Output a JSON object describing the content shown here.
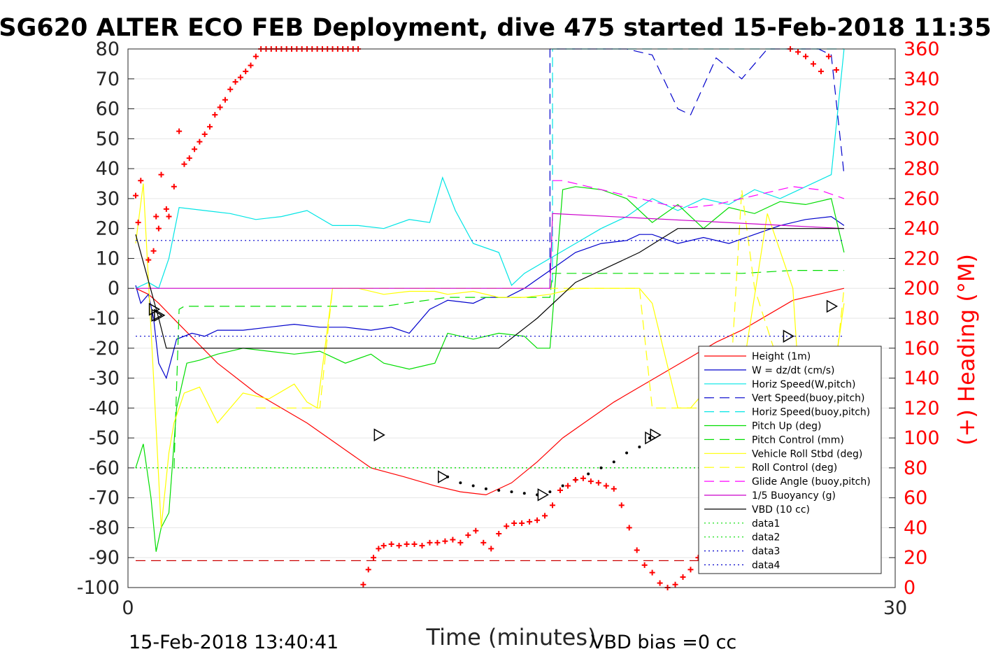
{
  "chart_data": {
    "type": "line",
    "title": "SG620 ALTER ECO FEB Deployment, dive 475 started 15-Feb-2018 11:35",
    "xlabel": "Time (minutes)",
    "ylabel_right": "(+) Heading (°M)",
    "xlim": [
      0,
      30
    ],
    "ylim": [
      -100,
      80
    ],
    "ylim_right": [
      0,
      360
    ],
    "x_ticks": [
      "0",
      "30"
    ],
    "y_ticks": [
      "80",
      "70",
      "60",
      "50",
      "40",
      "30",
      "20",
      "10",
      "0",
      "-10",
      "-20",
      "-30",
      "-40",
      "-50",
      "-60",
      "-70",
      "-80",
      "-90",
      "-100"
    ],
    "y_right_ticks": [
      "360",
      "340",
      "320",
      "300",
      "280",
      "260",
      "240",
      "220",
      "200",
      "180",
      "160",
      "140",
      "120",
      "100",
      "80",
      "60",
      "40",
      "20",
      "0"
    ],
    "footer_left": "15-Feb-2018 13:40:41",
    "footer_right": "VBD bias =0 cc",
    "legend_position": "lower-right",
    "legend": [
      {
        "label": "Height (1m)",
        "color": "#ff0000",
        "dash": "solid"
      },
      {
        "label": "W = dz/dt (cm/s)",
        "color": "#0000cc",
        "dash": "solid"
      },
      {
        "label": "Horiz Speed(W,pitch)",
        "color": "#00e5e5",
        "dash": "solid"
      },
      {
        "label": "Vert Speed(buoy,pitch)",
        "color": "#0000cc",
        "dash": "dashed"
      },
      {
        "label": "Horiz Speed(buoy,pitch)",
        "color": "#00e5e5",
        "dash": "dashed"
      },
      {
        "label": "Pitch Up (deg)",
        "color": "#00dd00",
        "dash": "solid"
      },
      {
        "label": "Pitch Control (mm)",
        "color": "#00dd00",
        "dash": "dashed"
      },
      {
        "label": "Vehicle Roll Stbd (deg)",
        "color": "#ffff00",
        "dash": "solid"
      },
      {
        "label": "Roll Control (deg)",
        "color": "#ffff00",
        "dash": "dashed"
      },
      {
        "label": "Glide Angle (buoy,pitch)",
        "color": "#ff00ff",
        "dash": "dashed"
      },
      {
        "label": "1/5 Buoyancy (g)",
        "color": "#cc00cc",
        "dash": "solid"
      },
      {
        "label": "VBD (10 cc)",
        "color": "#000000",
        "dash": "solid"
      },
      {
        "label": "data1",
        "color": "#00dd00",
        "dash": "dotted"
      },
      {
        "label": "data2",
        "color": "#00dd00",
        "dash": "dotted"
      },
      {
        "label": "data3",
        "color": "#0000cc",
        "dash": "dotted"
      },
      {
        "label": "data4",
        "color": "#0000cc",
        "dash": "dotted"
      }
    ],
    "series": [
      {
        "name": "Height (1m)",
        "color": "#ff0000",
        "dash": "solid",
        "x": [
          0.3,
          0.8,
          1.2,
          2.0,
          3.5,
          5.0,
          7.0,
          7.5,
          8.5,
          9.5,
          10.8,
          12.0,
          13.0,
          14.0,
          15.0,
          16.0,
          17.0,
          18.0,
          19.0,
          20.0,
          21.0,
          22.0,
          23.0,
          24.0,
          25.0,
          26.0,
          28.0
        ],
        "y": [
          0,
          -2,
          -5,
          -12,
          -25,
          -35,
          -45,
          -48,
          -54,
          -60,
          -63,
          -66,
          -68,
          -69,
          -65,
          -58,
          -50,
          -44,
          -38,
          -33,
          -28,
          -23,
          -18,
          -14,
          -9,
          -4,
          0
        ]
      },
      {
        "name": "W = dz/dt (cm/s)",
        "color": "#0000cc",
        "dash": "solid",
        "x": [
          0.3,
          0.5,
          0.8,
          1.0,
          1.2,
          1.5,
          1.9,
          2.5,
          3.0,
          3.5,
          4.5,
          5.5,
          6.5,
          7.5,
          8.5,
          9.5,
          10.3,
          11.0,
          11.8,
          12.5,
          13.5,
          14.0,
          14.8,
          15.5,
          16.5,
          17.5,
          18.5,
          19.5,
          20.0,
          20.5,
          21.5,
          22.5,
          23.5,
          24.5,
          25.5,
          26.5,
          27.5,
          28.0
        ],
        "y": [
          1,
          -5,
          -2,
          -10,
          -25,
          -30,
          -17,
          -15,
          -16,
          -14,
          -14,
          -13,
          -12,
          -13,
          -13,
          -14,
          -13,
          -15,
          -7,
          -4,
          -5,
          -3,
          -3,
          0,
          6,
          12,
          15,
          16,
          18,
          18,
          15,
          17,
          15,
          18,
          21,
          23,
          24,
          21
        ]
      },
      {
        "name": "Horiz Speed(W,pitch)",
        "color": "#00e5e5",
        "dash": "solid",
        "x": [
          0.3,
          0.8,
          1.2,
          1.6,
          2.0,
          3.0,
          4.0,
          5.0,
          6.0,
          7.0,
          8.0,
          9.0,
          10.0,
          11.0,
          11.8,
          12.3,
          12.8,
          13.5,
          14.5,
          15.0,
          15.5,
          16.5,
          17.5,
          18.5,
          19.5,
          20.5,
          21.5,
          22.5,
          23.5,
          24.5,
          25.5,
          26.5,
          27.5,
          28.0
        ],
        "y": [
          0,
          2,
          0,
          10,
          27,
          26,
          25,
          23,
          24,
          26,
          21,
          21,
          20,
          23,
          22,
          37,
          26,
          15,
          12,
          1,
          5,
          10,
          15,
          20,
          24,
          30,
          26,
          30,
          28,
          33,
          30,
          34,
          38,
          80
        ]
      },
      {
        "name": "Vert Speed(buoy,pitch)",
        "color": "#0000cc",
        "dash": "dashed",
        "x": [
          16.5,
          16.5,
          17.5,
          18.5,
          19.5,
          20.5,
          21.5,
          22.0,
          23.0,
          24.0,
          25.0,
          26.0,
          27.0,
          27.5,
          28.0
        ],
        "y": [
          0,
          80,
          80,
          80,
          80,
          78,
          60,
          58,
          77,
          70,
          80,
          80,
          80,
          78,
          38
        ]
      },
      {
        "name": "Horiz Speed(buoy,pitch)",
        "color": "#00e5e5",
        "dash": "dashed",
        "x": [
          16.6,
          16.6,
          17.5,
          18.5,
          19.5,
          20.5,
          21.5,
          22.5,
          23.5,
          24.5,
          25.5,
          26.5,
          27.5,
          28.0
        ],
        "y": [
          2,
          80,
          80,
          80,
          80,
          80,
          80,
          80,
          80,
          80,
          80,
          80,
          80,
          80
        ]
      },
      {
        "name": "Pitch Up (deg)",
        "color": "#00dd00",
        "dash": "solid",
        "x": [
          0.3,
          0.6,
          0.9,
          1.1,
          1.3,
          1.6,
          1.9,
          2.3,
          2.8,
          3.5,
          4.5,
          5.5,
          6.5,
          7.5,
          8.5,
          9.5,
          10.0,
          11.0,
          12.0,
          12.5,
          13.5,
          14.5,
          15.5,
          16.0,
          16.5,
          17.0,
          17.5,
          18.5,
          19.5,
          20.5,
          21.5,
          22.5,
          23.5,
          24.5,
          25.5,
          26.5,
          27.5,
          28.0
        ],
        "y": [
          -60,
          -52,
          -70,
          -88,
          -80,
          -75,
          -40,
          -25,
          -24,
          -22,
          -20,
          -21,
          -22,
          -21,
          -25,
          -22,
          -25,
          -27,
          -25,
          -15,
          -17,
          -15,
          -16,
          -20,
          -20,
          33,
          34,
          33,
          30,
          22,
          28,
          20,
          27,
          25,
          29,
          28,
          30,
          12
        ]
      },
      {
        "name": "Pitch Control (mm)",
        "color": "#00dd00",
        "dash": "dashed",
        "x": [
          1.8,
          2.0,
          2.2,
          6.0,
          10.0,
          12.5,
          16.5,
          16.6,
          17.0,
          20.0,
          22.0,
          24.0,
          26.0,
          28.0
        ],
        "y": [
          -60,
          -7,
          -6,
          -6,
          -6,
          -3,
          -3,
          5,
          5,
          5,
          5,
          5,
          6,
          6
        ]
      },
      {
        "name": "Vehicle Roll Stbd (deg)",
        "color": "#ffff00",
        "dash": "solid",
        "x": [
          0.3,
          0.6,
          1.0,
          1.3,
          1.6,
          1.8,
          2.2,
          2.8,
          3.5,
          4.5,
          5.5,
          6.5,
          7.0,
          7.4,
          8.0,
          9.0,
          10.0,
          11.0,
          12.0,
          12.5,
          13.5,
          14.5,
          15.5,
          16.5,
          17.5,
          18.5,
          19.5,
          20.0,
          20.5,
          21.5,
          22.0,
          22.5,
          23.0,
          24.0,
          25.0,
          26.0,
          26.3,
          27.0,
          27.5,
          28.0
        ],
        "y": [
          15,
          35,
          -30,
          -80,
          -55,
          -45,
          -35,
          -33,
          -45,
          -35,
          -37,
          -32,
          -38,
          -40,
          0,
          0,
          -2,
          -1,
          -1,
          -2,
          -1,
          -3,
          -3,
          -2,
          0,
          0,
          0,
          0,
          -5,
          -40,
          -40,
          -35,
          -40,
          -30,
          25,
          0,
          -40,
          -40,
          -35,
          -5
        ]
      },
      {
        "name": "Roll Control (deg)",
        "color": "#ffff00",
        "dash": "dashed",
        "x": [
          5.0,
          7.5,
          8.0,
          10.0,
          12.5,
          16.5,
          17.0,
          20.0,
          20.5,
          21.0,
          22.0,
          22.5,
          23.5,
          24.0,
          24.5,
          26.0,
          26.5,
          27.5,
          28.0
        ],
        "y": [
          -40,
          -40,
          0,
          0,
          0,
          0,
          0,
          0,
          -40,
          -40,
          -40,
          -40,
          -40,
          33,
          0,
          -40,
          -40,
          -40,
          0
        ]
      },
      {
        "name": "Glide Angle (buoy,pitch)",
        "color": "#ff00ff",
        "dash": "dashed",
        "x": [
          16.6,
          17.0,
          18.0,
          19.0,
          20.0,
          21.0,
          22.0,
          23.0,
          24.0,
          25.0,
          26.0,
          27.0,
          28.0
        ],
        "y": [
          36,
          36,
          34,
          32,
          30,
          28,
          27,
          28,
          30,
          32,
          34,
          33,
          30
        ]
      },
      {
        "name": "1/5 Buoyancy (g)",
        "color": "#cc00cc",
        "dash": "solid",
        "x": [
          0.3,
          8.0,
          16.5,
          16.6,
          28.0
        ],
        "y": [
          0,
          0,
          0,
          25,
          20
        ]
      },
      {
        "name": "VBD (10 cc)",
        "color": "#000000",
        "dash": "solid",
        "x": [
          0.3,
          1.2,
          1.5,
          7.0,
          13.0,
          14.5,
          16.0,
          17.5,
          20.0,
          21.5,
          28.0
        ],
        "y": [
          18,
          -10,
          -20,
          -20,
          -20,
          -20,
          -10,
          2,
          12,
          20,
          20
        ]
      },
      {
        "name": "data1",
        "color": "#00dd00",
        "dash": "dotted",
        "x": [
          0.3,
          28.0
        ],
        "y": [
          -60,
          -60
        ]
      },
      {
        "name": "data2",
        "color": "#00dd00",
        "dash": "dotted",
        "x": [
          0.3,
          28.0
        ],
        "y": [
          -60,
          -60
        ]
      },
      {
        "name": "data3",
        "color": "#0000cc",
        "dash": "dotted",
        "x": [
          0.3,
          28.0
        ],
        "y": [
          16,
          16
        ]
      },
      {
        "name": "data4",
        "color": "#0000cc",
        "dash": "dotted",
        "x": [
          0.3,
          28.0
        ],
        "y": [
          -16,
          -16
        ]
      }
    ],
    "reference_line": {
      "color": "#cc0000",
      "dash": "dashed",
      "y": -91,
      "x": [
        0.3,
        28.0
      ]
    },
    "triangle_markers": {
      "x": [
        1.0,
        1.1,
        1.2,
        9.8,
        12.3,
        16.2,
        20.4,
        20.6,
        22.5,
        23.5,
        24.8,
        25.8,
        27.5
      ],
      "y": [
        -7,
        -9,
        -9,
        -49,
        -63,
        -69,
        -50,
        -49,
        -38,
        -31,
        -24,
        -16,
        -6
      ]
    },
    "dotted_segment": {
      "x": [
        12.5,
        13.0,
        13.5,
        14.0,
        14.5,
        15.0,
        15.5,
        16.0,
        16.5,
        17.0,
        17.5,
        18.0,
        18.5,
        19.0,
        19.5,
        20.0,
        20.4
      ],
      "y": [
        -63,
        -65,
        -66,
        -67,
        -67.5,
        -68,
        -68.5,
        -69,
        -68,
        -66,
        -64,
        -62,
        -60,
        -58,
        -55,
        -53,
        -50
      ]
    },
    "heading_markers_deg": {
      "x": [
        0.3,
        0.4,
        0.5,
        0.8,
        1.0,
        1.1,
        1.2,
        1.3,
        1.5,
        1.6,
        1.8,
        2.0,
        2.2,
        2.4,
        2.6,
        2.8,
        3.0,
        3.2,
        3.4,
        3.6,
        3.8,
        4.0,
        4.2,
        4.4,
        4.6,
        4.8,
        5.0,
        5.2,
        5.4,
        5.6,
        5.8,
        6.0,
        6.2,
        6.4,
        6.6,
        6.8,
        7.0,
        7.2,
        7.4,
        7.6,
        7.8,
        8.0,
        8.2,
        8.4,
        8.6,
        8.8,
        9.0,
        9.2,
        9.4,
        9.6,
        9.8,
        10.0,
        10.3,
        10.6,
        10.9,
        11.2,
        11.5,
        11.8,
        12.1,
        12.4,
        12.7,
        13.0,
        13.3,
        13.6,
        13.9,
        14.2,
        14.5,
        14.8,
        15.1,
        15.4,
        15.7,
        16.0,
        16.3,
        16.6,
        16.9,
        17.2,
        17.5,
        17.8,
        18.1,
        18.4,
        18.7,
        19.0,
        19.3,
        19.6,
        19.9,
        20.2,
        20.5,
        20.8,
        21.1,
        21.4,
        21.7,
        22.0,
        22.3,
        22.6,
        22.9,
        23.2,
        23.5,
        23.8,
        24.1,
        24.4,
        24.7,
        25.0,
        25.3,
        25.6,
        25.9,
        26.2,
        26.5,
        26.8,
        27.1,
        27.4,
        27.7,
        28.0
      ],
      "y": [
        262,
        244,
        272,
        219,
        225,
        248,
        240,
        276,
        253,
        248,
        268,
        305,
        283,
        287,
        293,
        298,
        303,
        308,
        316,
        321,
        326,
        333,
        338,
        341,
        345,
        349,
        355,
        360,
        360,
        360,
        360,
        360,
        360,
        360,
        360,
        360,
        360,
        360,
        360,
        360,
        360,
        360,
        360,
        360,
        360,
        360,
        360,
        2,
        12,
        20,
        26,
        28,
        29,
        28,
        29,
        29,
        28,
        30,
        30,
        31,
        32,
        30,
        35,
        38,
        30,
        26,
        36,
        41,
        43,
        43,
        44,
        45,
        48,
        55,
        65,
        68,
        72,
        73,
        71,
        70,
        68,
        66,
        55,
        40,
        25,
        15,
        10,
        3,
        0,
        2,
        7,
        12,
        20,
        27,
        33,
        35,
        40,
        45,
        30,
        24,
        18,
        13,
        12,
        15,
        360,
        358,
        355,
        350,
        345,
        355,
        346,
        18
      ]
    }
  }
}
